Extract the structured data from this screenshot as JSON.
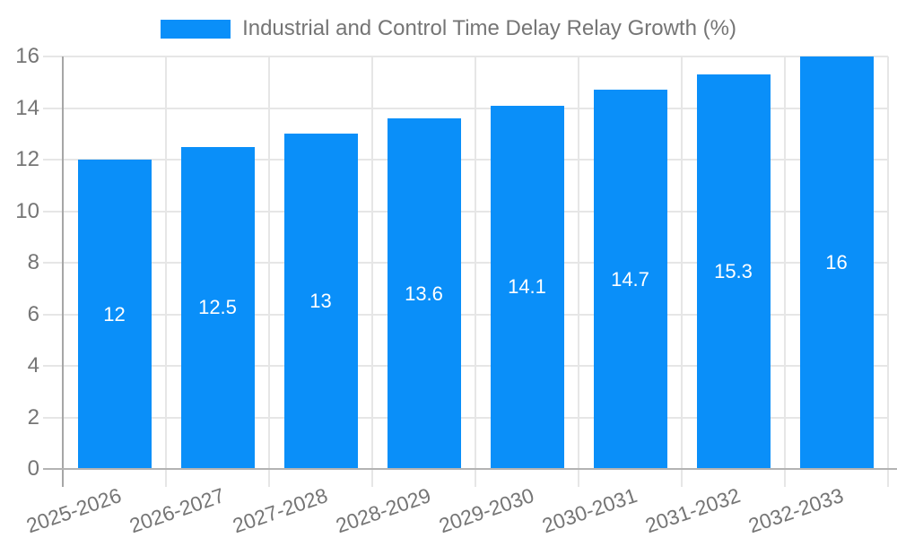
{
  "legend": {
    "label": "Industrial and Control Time Delay Relay Growth (%)"
  },
  "chart_data": {
    "type": "bar",
    "title": "Industrial and Control Time Delay Relay Growth (%)",
    "categories": [
      "2025-2026",
      "2026-2027",
      "2027-2028",
      "2028-2029",
      "2029-2030",
      "2030-2031",
      "2031-2032",
      "2032-2033"
    ],
    "values": [
      12,
      12.5,
      13,
      13.6,
      14.1,
      14.7,
      15.3,
      16
    ],
    "bar_labels": [
      "12",
      "12.5",
      "13",
      "13.6",
      "14.1",
      "14.7",
      "15.3",
      "16"
    ],
    "xlabel": "",
    "ylabel": "",
    "ylim": [
      0,
      16
    ],
    "yticks": [
      0,
      2,
      4,
      6,
      8,
      10,
      12,
      14,
      16
    ],
    "grid": true,
    "legend_position": "top",
    "colors": {
      "bar": "#0a8ff9",
      "axis_text": "#757575",
      "gridline": "#e6e6e6",
      "x_axis_line": "#b3b3b3",
      "y_axis_line": "#a6a6a6",
      "bar_label_text": "#ffffff",
      "background": "#ffffff"
    }
  }
}
